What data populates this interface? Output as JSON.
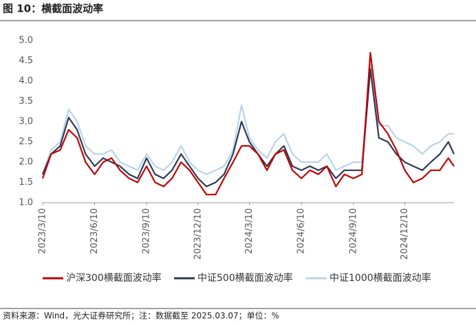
{
  "chart_data": {
    "type": "line",
    "title": "图 10：横截面波动率",
    "source": "资料来源：Wind，光大证券研究所；注：数据截至 2025.03.07；单位：%",
    "x": [
      "2023/3/10",
      "2023/3/25",
      "2023/4/10",
      "2023/4/25",
      "2023/5/10",
      "2023/5/25",
      "2023/6/10",
      "2023/6/25",
      "2023/7/10",
      "2023/7/25",
      "2023/8/10",
      "2023/8/25",
      "2023/9/10",
      "2023/9/25",
      "2023/10/10",
      "2023/10/25",
      "2023/11/10",
      "2023/11/25",
      "2023/12/10",
      "2023/12/25",
      "2024/1/10",
      "2024/1/25",
      "2024/2/10",
      "2024/2/25",
      "2024/3/10",
      "2024/3/25",
      "2024/4/10",
      "2024/4/25",
      "2024/5/10",
      "2024/5/25",
      "2024/6/10",
      "2024/6/25",
      "2024/7/10",
      "2024/7/25",
      "2024/8/10",
      "2024/8/25",
      "2024/9/10",
      "2024/9/25",
      "2024/10/10",
      "2024/10/25",
      "2024/11/10",
      "2024/11/25",
      "2024/12/10",
      "2024/12/25",
      "2025/1/10",
      "2025/1/25",
      "2025/2/10",
      "2025/2/25",
      "2025/3/7"
    ],
    "series": [
      {
        "name": "沪深300横截面波动率",
        "color": "#c00000",
        "values": [
          1.6,
          2.2,
          2.3,
          2.8,
          2.6,
          2.0,
          1.7,
          2.0,
          2.1,
          1.8,
          1.6,
          1.5,
          1.9,
          1.5,
          1.4,
          1.6,
          2.0,
          1.8,
          1.5,
          1.2,
          1.2,
          1.6,
          2.0,
          2.4,
          2.4,
          2.2,
          1.8,
          2.2,
          2.3,
          1.8,
          1.6,
          1.8,
          1.7,
          1.9,
          1.4,
          1.7,
          1.6,
          1.7,
          4.7,
          3.0,
          2.7,
          2.3,
          1.8,
          1.5,
          1.6,
          1.8,
          1.8,
          2.1,
          1.9
        ]
      },
      {
        "name": "中证500横截面波动率",
        "color": "#2b3a55",
        "values": [
          1.7,
          2.2,
          2.4,
          3.1,
          2.8,
          2.2,
          1.9,
          2.1,
          2.0,
          1.9,
          1.7,
          1.6,
          2.1,
          1.7,
          1.6,
          1.8,
          2.2,
          1.9,
          1.6,
          1.4,
          1.5,
          1.7,
          2.2,
          3.0,
          2.5,
          2.2,
          1.9,
          2.2,
          2.4,
          1.9,
          1.8,
          1.9,
          1.8,
          1.9,
          1.6,
          1.8,
          1.8,
          1.8,
          4.3,
          2.6,
          2.5,
          2.2,
          2.0,
          1.9,
          1.8,
          2.0,
          2.2,
          2.5,
          2.2
        ]
      },
      {
        "name": "中证1000横截面波动率",
        "color": "#b8d3ea",
        "values": [
          1.7,
          2.3,
          2.5,
          3.3,
          3.0,
          2.4,
          2.2,
          2.2,
          2.3,
          2.0,
          1.9,
          1.8,
          2.2,
          1.9,
          1.8,
          2.0,
          2.4,
          2.0,
          1.8,
          1.7,
          1.8,
          1.9,
          2.3,
          3.4,
          2.6,
          2.3,
          2.1,
          2.5,
          2.7,
          2.2,
          2.0,
          2.0,
          2.0,
          2.2,
          1.8,
          1.9,
          2.0,
          2.0,
          4.4,
          2.9,
          2.9,
          2.6,
          2.5,
          2.4,
          2.2,
          2.4,
          2.5,
          2.7,
          2.7
        ]
      }
    ],
    "ylim": [
      1.0,
      5.0
    ],
    "yticks": [
      {
        "value": 1.0,
        "label": "1.0"
      },
      {
        "value": 1.5,
        "label": "1.5"
      },
      {
        "value": 2.0,
        "label": "2.0"
      },
      {
        "value": 2.5,
        "label": "2.5"
      },
      {
        "value": 3.0,
        "label": "3.0"
      },
      {
        "value": 3.5,
        "label": "3.5"
      },
      {
        "value": 4.0,
        "label": "4.0"
      },
      {
        "value": 4.5,
        "label": "4.5"
      },
      {
        "value": 5.0,
        "label": "5.0"
      }
    ],
    "xticks": [
      "2023/3/10",
      "2023/6/10",
      "2023/9/10",
      "2023/12/10",
      "2024/3/10",
      "2024/6/10",
      "2024/9/10",
      "2024/12/10"
    ]
  }
}
